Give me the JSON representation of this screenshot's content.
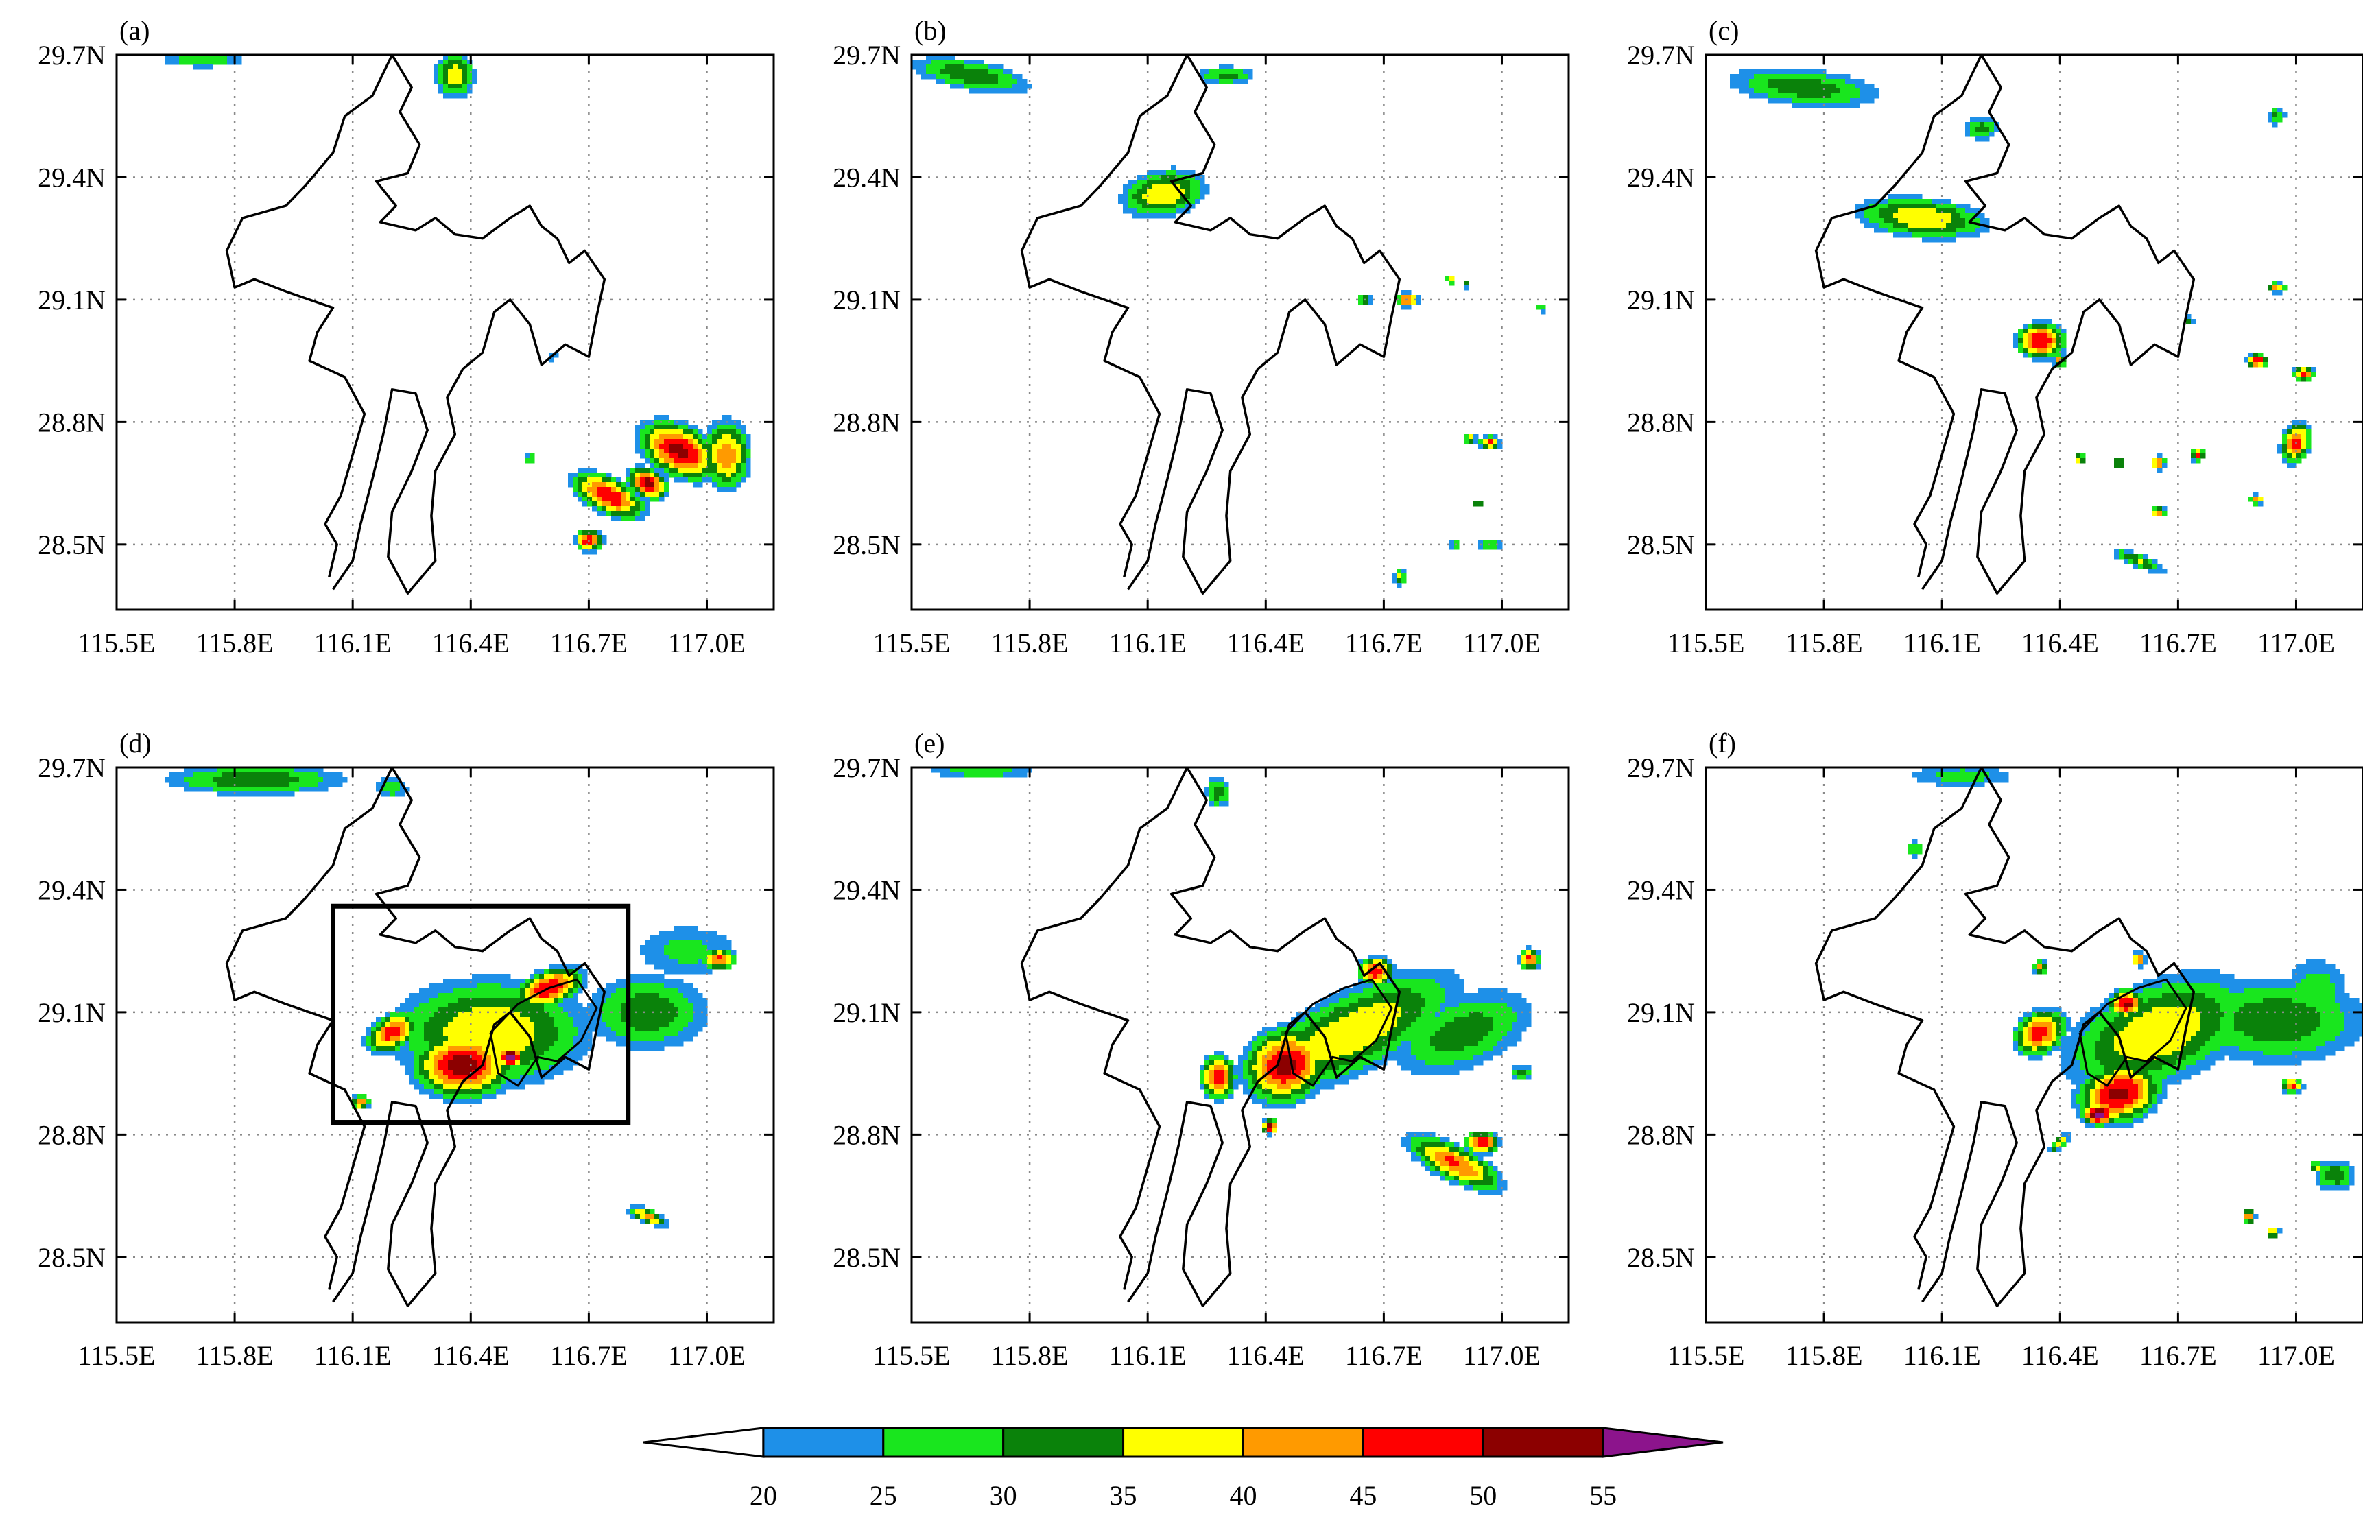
{
  "chart_data": {
    "type": "heatmap",
    "layout": "2x3 grid of map panels",
    "panels": [
      {
        "label": "(a)",
        "highlight_box": false
      },
      {
        "label": "(b)",
        "highlight_box": false
      },
      {
        "label": "(c)",
        "highlight_box": false
      },
      {
        "label": "(d)",
        "highlight_box": true,
        "box_extent": {
          "lon": [
            116.05,
            116.8
          ],
          "lat": [
            28.83,
            29.36
          ]
        }
      },
      {
        "label": "(e)",
        "highlight_box": false
      },
      {
        "label": "(f)",
        "highlight_box": false
      }
    ],
    "axes": {
      "xlim": [
        115.5,
        117.17
      ],
      "ylim": [
        28.34,
        29.7
      ],
      "xticks": [
        115.5,
        115.8,
        116.1,
        116.4,
        116.7,
        117.0
      ],
      "xtick_labels": [
        "115.5E",
        "115.8E",
        "116.1E",
        "116.4E",
        "116.7E",
        "117.0E"
      ],
      "yticks": [
        28.5,
        28.8,
        29.1,
        29.4,
        29.7
      ],
      "ytick_labels": [
        "28.5N",
        "28.8N",
        "29.1N",
        "29.4N",
        "29.7N"
      ],
      "grid": "dotted"
    },
    "colorbar": {
      "position": "bottom",
      "levels": [
        20,
        25,
        30,
        35,
        40,
        45,
        50,
        55
      ],
      "level_labels": [
        "20",
        "25",
        "30",
        "35",
        "40",
        "45",
        "50",
        "55"
      ],
      "colors": [
        "#1e90e8",
        "#19e61e",
        "#0a820a",
        "#ffff00",
        "#ff9a00",
        "#ff0000",
        "#8c0000",
        "#8c148c"
      ],
      "extend_low_color": "#ffffff",
      "extend_high_color": "#8c148c"
    },
    "fields": [
      [
        {
          "lon": 116.93,
          "lat": 28.73,
          "rx": 0.12,
          "ry": 0.07,
          "peak": 52,
          "rot": -25
        },
        {
          "lon": 116.75,
          "lat": 28.62,
          "rx": 0.11,
          "ry": 0.05,
          "peak": 50,
          "rot": -25
        },
        {
          "lon": 116.85,
          "lat": 28.65,
          "rx": 0.06,
          "ry": 0.04,
          "peak": 52,
          "rot": -25
        },
        {
          "lon": 116.7,
          "lat": 28.51,
          "rx": 0.04,
          "ry": 0.03,
          "peak": 50,
          "rot": 0
        },
        {
          "lon": 117.05,
          "lat": 28.72,
          "rx": 0.07,
          "ry": 0.1,
          "peak": 44,
          "rot": 0
        },
        {
          "lon": 116.36,
          "lat": 29.65,
          "rx": 0.06,
          "ry": 0.07,
          "peak": 39,
          "rot": 0
        },
        {
          "lon": 115.72,
          "lat": 29.69,
          "rx": 0.15,
          "ry": 0.03,
          "peak": 30,
          "rot": 0
        },
        {
          "lon": 116.55,
          "lat": 28.71,
          "rx": 0.02,
          "ry": 0.02,
          "peak": 31,
          "rot": 0
        },
        {
          "lon": 116.61,
          "lat": 28.96,
          "rx": 0.015,
          "ry": 0.015,
          "peak": 29,
          "rot": 0
        }
      ],
      [
        {
          "lon": 116.14,
          "lat": 29.36,
          "rx": 0.13,
          "ry": 0.07,
          "peak": 40,
          "rot": 10
        },
        {
          "lon": 115.65,
          "lat": 29.65,
          "rx": 0.2,
          "ry": 0.05,
          "peak": 34,
          "rot": -10
        },
        {
          "lon": 116.3,
          "lat": 29.65,
          "rx": 0.1,
          "ry": 0.03,
          "peak": 32,
          "rot": 0
        },
        {
          "lon": 116.76,
          "lat": 29.1,
          "rx": 0.03,
          "ry": 0.02,
          "peak": 48,
          "rot": 0
        },
        {
          "lon": 116.65,
          "lat": 29.1,
          "rx": 0.02,
          "ry": 0.02,
          "peak": 38,
          "rot": 0
        },
        {
          "lon": 116.97,
          "lat": 28.75,
          "rx": 0.03,
          "ry": 0.02,
          "peak": 46,
          "rot": 0
        },
        {
          "lon": 116.92,
          "lat": 28.76,
          "rx": 0.02,
          "ry": 0.015,
          "peak": 40,
          "rot": 0
        },
        {
          "lon": 116.97,
          "lat": 28.5,
          "rx": 0.04,
          "ry": 0.015,
          "peak": 33,
          "rot": 0
        },
        {
          "lon": 116.74,
          "lat": 28.42,
          "rx": 0.02,
          "ry": 0.03,
          "peak": 36,
          "rot": 0
        },
        {
          "lon": 116.87,
          "lat": 29.15,
          "rx": 0.015,
          "ry": 0.015,
          "peak": 38,
          "rot": 0
        },
        {
          "lon": 117.1,
          "lat": 29.08,
          "rx": 0.02,
          "ry": 0.015,
          "peak": 32,
          "rot": 0
        },
        {
          "lon": 116.91,
          "lat": 29.14,
          "rx": 0.015,
          "ry": 0.015,
          "peak": 34,
          "rot": 0
        },
        {
          "lon": 116.94,
          "lat": 28.6,
          "rx": 0.015,
          "ry": 0.015,
          "peak": 36,
          "rot": 0
        },
        {
          "lon": 116.88,
          "lat": 28.5,
          "rx": 0.015,
          "ry": 0.012,
          "peak": 36,
          "rot": 0
        }
      ],
      [
        {
          "lon": 116.05,
          "lat": 29.3,
          "rx": 0.2,
          "ry": 0.06,
          "peak": 40,
          "rot": -5
        },
        {
          "lon": 116.35,
          "lat": 29.0,
          "rx": 0.07,
          "ry": 0.05,
          "peak": 50,
          "rot": 0
        },
        {
          "lon": 115.75,
          "lat": 29.62,
          "rx": 0.25,
          "ry": 0.06,
          "peak": 34,
          "rot": -5
        },
        {
          "lon": 116.2,
          "lat": 29.52,
          "rx": 0.06,
          "ry": 0.04,
          "peak": 32,
          "rot": 0
        },
        {
          "lon": 117.0,
          "lat": 28.75,
          "rx": 0.04,
          "ry": 0.06,
          "peak": 48,
          "rot": -20
        },
        {
          "lon": 116.9,
          "lat": 28.95,
          "rx": 0.03,
          "ry": 0.02,
          "peak": 50,
          "rot": 0
        },
        {
          "lon": 117.02,
          "lat": 28.92,
          "rx": 0.03,
          "ry": 0.02,
          "peak": 48,
          "rot": 0
        },
        {
          "lon": 116.75,
          "lat": 28.72,
          "rx": 0.02,
          "ry": 0.02,
          "peak": 46,
          "rot": 0
        },
        {
          "lon": 116.65,
          "lat": 28.7,
          "rx": 0.02,
          "ry": 0.02,
          "peak": 46,
          "rot": 0
        },
        {
          "lon": 116.55,
          "lat": 28.7,
          "rx": 0.015,
          "ry": 0.015,
          "peak": 44,
          "rot": 0
        },
        {
          "lon": 116.65,
          "lat": 28.58,
          "rx": 0.02,
          "ry": 0.015,
          "peak": 46,
          "rot": 0
        },
        {
          "lon": 116.9,
          "lat": 28.61,
          "rx": 0.02,
          "ry": 0.015,
          "peak": 44,
          "rot": 0
        },
        {
          "lon": 116.6,
          "lat": 28.46,
          "rx": 0.09,
          "ry": 0.02,
          "peak": 36,
          "rot": -20
        },
        {
          "lon": 116.95,
          "lat": 29.13,
          "rx": 0.03,
          "ry": 0.015,
          "peak": 42,
          "rot": 0
        },
        {
          "lon": 116.95,
          "lat": 29.55,
          "rx": 0.03,
          "ry": 0.03,
          "peak": 32,
          "rot": 0
        },
        {
          "lon": 116.73,
          "lat": 29.05,
          "rx": 0.015,
          "ry": 0.015,
          "peak": 33,
          "rot": 0
        },
        {
          "lon": 116.4,
          "lat": 28.95,
          "rx": 0.02,
          "ry": 0.02,
          "peak": 42,
          "rot": 0
        },
        {
          "lon": 116.45,
          "lat": 28.71,
          "rx": 0.015,
          "ry": 0.015,
          "peak": 44,
          "rot": 0
        }
      ],
      [
        {
          "lon": 116.45,
          "lat": 29.05,
          "rx": 0.3,
          "ry": 0.16,
          "peak": 40,
          "rot": 0
        },
        {
          "lon": 116.38,
          "lat": 28.97,
          "rx": 0.14,
          "ry": 0.09,
          "peak": 53,
          "rot": 0
        },
        {
          "lon": 116.5,
          "lat": 28.99,
          "rx": 0.04,
          "ry": 0.03,
          "peak": 57,
          "rot": 0
        },
        {
          "lon": 116.6,
          "lat": 29.16,
          "rx": 0.1,
          "ry": 0.05,
          "peak": 50,
          "rot": 20
        },
        {
          "lon": 116.85,
          "lat": 29.1,
          "rx": 0.2,
          "ry": 0.12,
          "peak": 34,
          "rot": 0
        },
        {
          "lon": 116.2,
          "lat": 29.05,
          "rx": 0.08,
          "ry": 0.05,
          "peak": 48,
          "rot": 30
        },
        {
          "lon": 117.03,
          "lat": 29.23,
          "rx": 0.05,
          "ry": 0.03,
          "peak": 47,
          "rot": 0
        },
        {
          "lon": 116.95,
          "lat": 29.25,
          "rx": 0.2,
          "ry": 0.1,
          "peak": 27,
          "rot": 0
        },
        {
          "lon": 115.85,
          "lat": 29.67,
          "rx": 0.3,
          "ry": 0.05,
          "peak": 34,
          "rot": 0
        },
        {
          "lon": 116.2,
          "lat": 29.65,
          "rx": 0.06,
          "ry": 0.04,
          "peak": 29,
          "rot": 0
        },
        {
          "lon": 116.85,
          "lat": 28.6,
          "rx": 0.06,
          "ry": 0.02,
          "peak": 44,
          "rot": -20
        },
        {
          "lon": 116.12,
          "lat": 28.88,
          "rx": 0.03,
          "ry": 0.02,
          "peak": 44,
          "rot": 0
        }
      ],
      [
        {
          "lon": 116.62,
          "lat": 29.05,
          "rx": 0.35,
          "ry": 0.12,
          "peak": 40,
          "rot": 25
        },
        {
          "lon": 116.45,
          "lat": 28.97,
          "rx": 0.12,
          "ry": 0.1,
          "peak": 52,
          "rot": 20
        },
        {
          "lon": 116.28,
          "lat": 28.94,
          "rx": 0.05,
          "ry": 0.06,
          "peak": 50,
          "rot": 0
        },
        {
          "lon": 116.68,
          "lat": 29.2,
          "rx": 0.05,
          "ry": 0.04,
          "peak": 50,
          "rot": 0
        },
        {
          "lon": 116.9,
          "lat": 29.05,
          "rx": 0.25,
          "ry": 0.12,
          "peak": 33,
          "rot": 20
        },
        {
          "lon": 116.88,
          "lat": 28.73,
          "rx": 0.15,
          "ry": 0.05,
          "peak": 46,
          "rot": -25
        },
        {
          "lon": 116.95,
          "lat": 28.78,
          "rx": 0.05,
          "ry": 0.03,
          "peak": 50,
          "rot": 0
        },
        {
          "lon": 117.07,
          "lat": 29.23,
          "rx": 0.03,
          "ry": 0.03,
          "peak": 47,
          "rot": 0
        },
        {
          "lon": 117.05,
          "lat": 28.95,
          "rx": 0.04,
          "ry": 0.03,
          "peak": 31,
          "rot": 0
        },
        {
          "lon": 115.68,
          "lat": 29.69,
          "rx": 0.2,
          "ry": 0.02,
          "peak": 30,
          "rot": 0
        },
        {
          "lon": 116.28,
          "lat": 29.64,
          "rx": 0.04,
          "ry": 0.05,
          "peak": 34,
          "rot": 0
        },
        {
          "lon": 116.41,
          "lat": 28.82,
          "rx": 0.02,
          "ry": 0.02,
          "peak": 56,
          "rot": 0
        }
      ],
      [
        {
          "lon": 116.65,
          "lat": 29.05,
          "rx": 0.3,
          "ry": 0.15,
          "peak": 40,
          "rot": 20
        },
        {
          "lon": 116.55,
          "lat": 28.9,
          "rx": 0.12,
          "ry": 0.08,
          "peak": 52,
          "rot": 15
        },
        {
          "lon": 116.5,
          "lat": 28.85,
          "rx": 0.05,
          "ry": 0.03,
          "peak": 57,
          "rot": 0
        },
        {
          "lon": 116.57,
          "lat": 29.12,
          "rx": 0.05,
          "ry": 0.04,
          "peak": 52,
          "rot": 0
        },
        {
          "lon": 116.95,
          "lat": 29.08,
          "rx": 0.3,
          "ry": 0.14,
          "peak": 34,
          "rot": 0
        },
        {
          "lon": 117.05,
          "lat": 29.15,
          "rx": 0.12,
          "ry": 0.12,
          "peak": 29,
          "rot": 0
        },
        {
          "lon": 116.35,
          "lat": 29.05,
          "rx": 0.08,
          "ry": 0.06,
          "peak": 48,
          "rot": 30
        },
        {
          "lon": 116.99,
          "lat": 28.92,
          "rx": 0.03,
          "ry": 0.02,
          "peak": 48,
          "rot": 0
        },
        {
          "lon": 116.35,
          "lat": 29.21,
          "rx": 0.02,
          "ry": 0.02,
          "peak": 44,
          "rot": 0
        },
        {
          "lon": 116.6,
          "lat": 29.23,
          "rx": 0.02,
          "ry": 0.02,
          "peak": 48,
          "rot": 0
        },
        {
          "lon": 116.88,
          "lat": 28.6,
          "rx": 0.02,
          "ry": 0.02,
          "peak": 46,
          "rot": 0
        },
        {
          "lon": 116.94,
          "lat": 28.56,
          "rx": 0.02,
          "ry": 0.015,
          "peak": 46,
          "rot": 0
        },
        {
          "lon": 117.1,
          "lat": 28.7,
          "rx": 0.07,
          "ry": 0.05,
          "peak": 34,
          "rot": 0
        },
        {
          "lon": 117.05,
          "lat": 28.72,
          "rx": 0.015,
          "ry": 0.015,
          "peak": 42,
          "rot": 0
        },
        {
          "lon": 116.15,
          "lat": 29.68,
          "rx": 0.2,
          "ry": 0.04,
          "peak": 28,
          "rot": 0
        },
        {
          "lon": 116.03,
          "lat": 29.5,
          "rx": 0.03,
          "ry": 0.03,
          "peak": 31,
          "rot": 0
        },
        {
          "lon": 116.4,
          "lat": 28.78,
          "rx": 0.04,
          "ry": 0.015,
          "peak": 40,
          "rot": 40
        }
      ]
    ],
    "coastline": [
      [
        116.04,
        28.42
      ],
      [
        116.06,
        28.5
      ],
      [
        116.03,
        28.55
      ],
      [
        116.07,
        28.62
      ],
      [
        116.1,
        28.72
      ],
      [
        116.13,
        28.82
      ],
      [
        116.08,
        28.91
      ],
      [
        115.99,
        28.95
      ],
      [
        116.01,
        29.02
      ],
      [
        116.05,
        29.08
      ],
      [
        115.93,
        29.12
      ],
      [
        115.85,
        29.15
      ],
      [
        115.8,
        29.13
      ],
      [
        115.78,
        29.22
      ],
      [
        115.82,
        29.3
      ],
      [
        115.93,
        29.33
      ],
      [
        115.98,
        29.38
      ],
      [
        116.05,
        29.46
      ],
      [
        116.08,
        29.55
      ],
      [
        116.15,
        29.6
      ],
      [
        116.2,
        29.7
      ],
      [
        116.25,
        29.62
      ],
      [
        116.22,
        29.56
      ],
      [
        116.27,
        29.48
      ],
      [
        116.24,
        29.41
      ],
      [
        116.16,
        29.39
      ],
      [
        116.21,
        29.33
      ],
      [
        116.17,
        29.29
      ],
      [
        116.26,
        29.27
      ],
      [
        116.31,
        29.3
      ],
      [
        116.36,
        29.26
      ],
      [
        116.43,
        29.25
      ],
      [
        116.5,
        29.3
      ],
      [
        116.55,
        29.33
      ],
      [
        116.58,
        29.28
      ],
      [
        116.62,
        29.25
      ],
      [
        116.65,
        29.19
      ],
      [
        116.69,
        29.22
      ],
      [
        116.74,
        29.15
      ],
      [
        116.72,
        29.06
      ],
      [
        116.7,
        28.96
      ],
      [
        116.64,
        28.99
      ],
      [
        116.58,
        28.94
      ],
      [
        116.55,
        29.04
      ],
      [
        116.5,
        29.1
      ],
      [
        116.46,
        29.07
      ],
      [
        116.43,
        28.97
      ],
      [
        116.38,
        28.93
      ],
      [
        116.34,
        28.86
      ],
      [
        116.36,
        28.77
      ],
      [
        116.31,
        28.68
      ],
      [
        116.3,
        28.57
      ],
      [
        116.31,
        28.46
      ],
      [
        116.24,
        28.38
      ],
      [
        116.19,
        28.47
      ],
      [
        116.2,
        28.58
      ],
      [
        116.25,
        28.68
      ],
      [
        116.29,
        28.78
      ],
      [
        116.26,
        28.87
      ],
      [
        116.2,
        28.88
      ],
      [
        116.18,
        28.78
      ],
      [
        116.15,
        28.66
      ],
      [
        116.12,
        28.55
      ],
      [
        116.1,
        28.46
      ],
      [
        116.05,
        28.39
      ]
    ],
    "inland_outline": [
      [
        116.45,
        29.05
      ],
      [
        116.52,
        29.12
      ],
      [
        116.6,
        29.16
      ],
      [
        116.67,
        29.18
      ],
      [
        116.72,
        29.11
      ],
      [
        116.68,
        29.03
      ],
      [
        116.62,
        28.98
      ],
      [
        116.57,
        28.99
      ],
      [
        116.52,
        28.92
      ],
      [
        116.47,
        28.95
      ],
      [
        116.45,
        29.05
      ]
    ]
  }
}
